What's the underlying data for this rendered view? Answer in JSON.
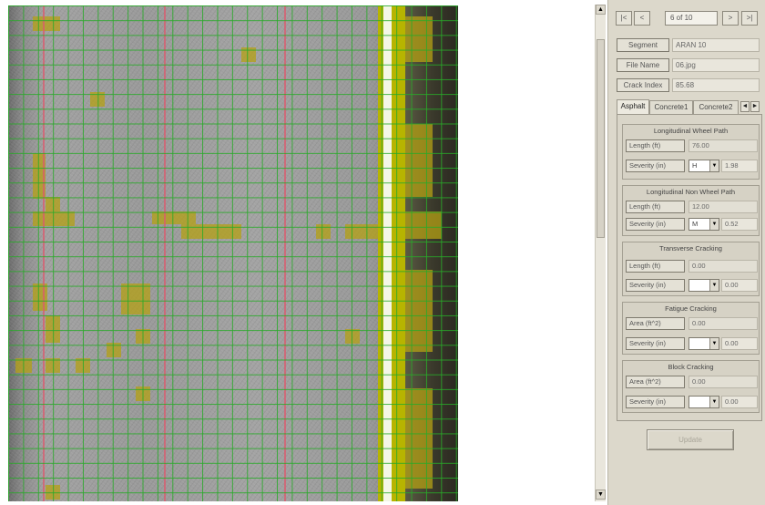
{
  "nav": {
    "first": "|<",
    "prev": "<",
    "position": "6 of 10",
    "next": ">",
    "last": ">|"
  },
  "info": [
    {
      "label": "Segment",
      "value": "ARAN 10"
    },
    {
      "label": "File Name",
      "value": "06.jpg"
    },
    {
      "label": "Crack Index",
      "value": "85.68"
    }
  ],
  "tabs": [
    {
      "label": "Asphalt",
      "active": true
    },
    {
      "label": "Concrete1",
      "active": false
    },
    {
      "label": "Concrete2",
      "active": false
    }
  ],
  "tab_scroll": {
    "left": "◄",
    "right": "►"
  },
  "groups": [
    {
      "title": "Longitudinal Wheel Path",
      "measure_label": "Length (ft)",
      "measure_value": "76.00",
      "severity_label": "Severity (in)",
      "severity_level": "H",
      "severity_value": "1.98"
    },
    {
      "title": "Longitudinal Non Wheel Path",
      "measure_label": "Length (ft)",
      "measure_value": "12.00",
      "severity_label": "Severity (in)",
      "severity_level": "M",
      "severity_value": "0.52"
    },
    {
      "title": "Transverse Cracking",
      "measure_label": "Length (ft)",
      "measure_value": "0.00",
      "severity_label": "Severity (in)",
      "severity_level": "",
      "severity_value": "0.00"
    },
    {
      "title": "Fatigue Cracking",
      "measure_label": "Area (ft^2)",
      "measure_value": "0.00",
      "severity_label": "Severity (in)",
      "severity_level": "",
      "severity_value": "0.00"
    },
    {
      "title": "Block Cracking",
      "measure_label": "Area (ft^2)",
      "measure_value": "0.00",
      "severity_label": "Severity (in)",
      "severity_level": "",
      "severity_value": "0.00"
    }
  ],
  "submit_label": "Update",
  "scroll": {
    "up": "▲",
    "down": "▼"
  },
  "colors": {
    "grid": "#28aa28",
    "crack_cell": "#b4a014",
    "lane_marking": "#b7b400",
    "panel": "#dcd8cb"
  }
}
